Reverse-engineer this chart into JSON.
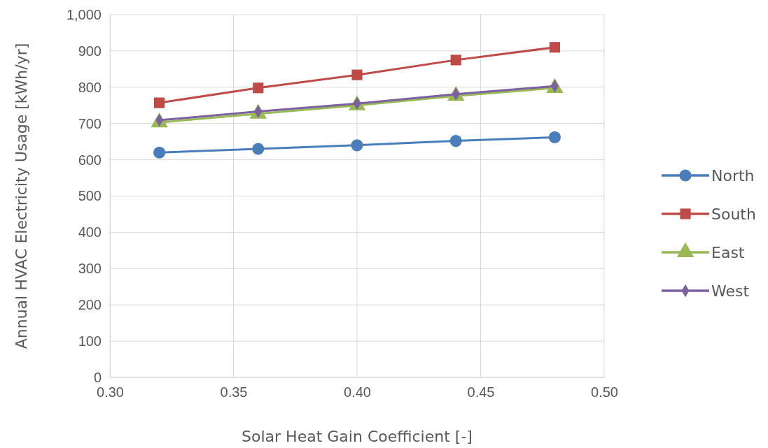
{
  "chart_data": {
    "type": "line",
    "xlabel": "Solar Heat Gain Coefficient [-]",
    "ylabel": "Annual HVAC Electricity Usage [kWh/yr]",
    "x": [
      0.32,
      0.36,
      0.4,
      0.44,
      0.48
    ],
    "series": [
      {
        "name": "North",
        "color": "#4a7ebb",
        "marker": "circle",
        "values": [
          620,
          630,
          640,
          652,
          662
        ]
      },
      {
        "name": "South",
        "color": "#be4b48",
        "marker": "square",
        "values": [
          757,
          798,
          834,
          875,
          910
        ]
      },
      {
        "name": "East",
        "color": "#98b954",
        "marker": "triangle",
        "values": [
          703,
          727,
          750,
          776,
          798
        ]
      },
      {
        "name": "West",
        "color": "#7d60a0",
        "marker": "diamond",
        "values": [
          709,
          733,
          755,
          781,
          803
        ]
      }
    ],
    "xlim": [
      0.3,
      0.5
    ],
    "xticks": [
      {
        "value": 0.3,
        "label": "0.30"
      },
      {
        "value": 0.35,
        "label": "0.35"
      },
      {
        "value": 0.4,
        "label": "0.40"
      },
      {
        "value": 0.45,
        "label": "0.45"
      },
      {
        "value": 0.5,
        "label": "0.50"
      }
    ],
    "ylim": [
      0,
      1000
    ],
    "yticks": [
      0,
      100,
      200,
      300,
      400,
      500,
      600,
      700,
      800,
      900,
      {
        "value": 1000,
        "label": "1,000"
      }
    ],
    "grid": true,
    "legend": "right",
    "line_style": "solid"
  }
}
